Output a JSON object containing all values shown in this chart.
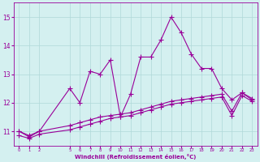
{
  "bg_color": "#d4f0f0",
  "grid_color": "#b0d8d8",
  "line_color": "#990099",
  "xlabel": "Windchill (Refroidissement éolien,°C)",
  "x_data": [
    0,
    1,
    2,
    5,
    6,
    7,
    8,
    9,
    10,
    11,
    12,
    13,
    14,
    15,
    16,
    17,
    18,
    19,
    20,
    21,
    22,
    23
  ],
  "ylim": [
    10.5,
    15.5
  ],
  "yticks": [
    11,
    12,
    13,
    14,
    15
  ],
  "xlim": [
    -0.5,
    23.5
  ],
  "xticks": [
    0,
    1,
    2,
    5,
    6,
    7,
    8,
    9,
    10,
    11,
    12,
    13,
    14,
    15,
    16,
    17,
    18,
    19,
    20,
    21,
    22,
    23
  ],
  "series1_y": [
    11.0,
    10.8,
    11.0,
    12.5,
    12.0,
    13.1,
    13.0,
    13.5,
    11.5,
    12.3,
    13.6,
    13.6,
    14.2,
    15.0,
    14.45,
    13.7,
    13.2,
    13.2,
    12.5,
    12.1,
    12.35,
    12.1
  ],
  "series2_y": [
    11.0,
    10.85,
    11.0,
    11.2,
    11.3,
    11.4,
    11.5,
    11.55,
    11.6,
    11.65,
    11.75,
    11.85,
    11.95,
    12.05,
    12.1,
    12.15,
    12.2,
    12.25,
    12.3,
    11.7,
    12.35,
    12.15
  ],
  "series3_y": [
    10.85,
    10.75,
    10.9,
    11.05,
    11.15,
    11.25,
    11.35,
    11.45,
    11.5,
    11.55,
    11.65,
    11.75,
    11.85,
    11.95,
    12.0,
    12.05,
    12.1,
    12.15,
    12.2,
    11.55,
    12.25,
    12.05
  ],
  "marker": "+",
  "markersize": 4,
  "linewidth": 0.8
}
